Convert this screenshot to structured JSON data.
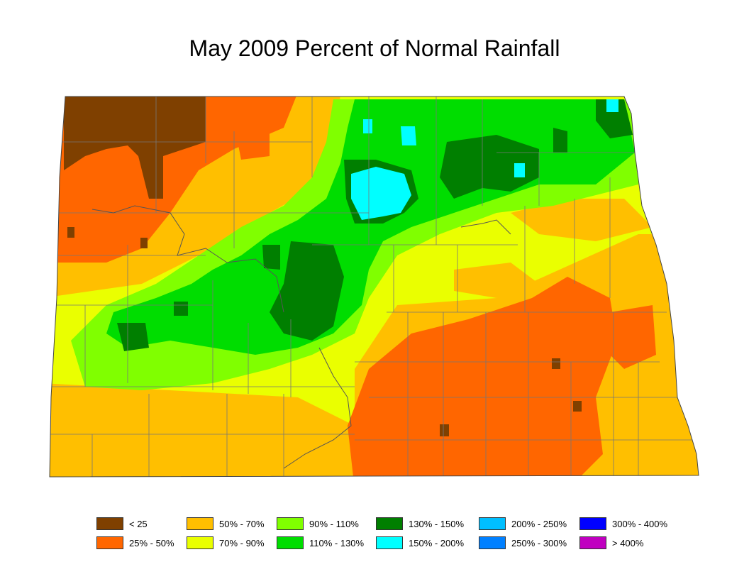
{
  "title": "May 2009 Percent of Normal Rainfall",
  "colors": {
    "lt25": "#7f4000",
    "p25_50": "#ff6600",
    "p50_70": "#ffbf00",
    "p70_90": "#eaff00",
    "p90_110": "#80ff00",
    "p110_130": "#00dd00",
    "p130_150": "#007f00",
    "p150_200": "#00ffff",
    "p200_250": "#00bfff",
    "p250_300": "#0080ff",
    "p300_400": "#0000ff",
    "gt400": "#c000c0"
  },
  "legend": [
    {
      "label": "< 25",
      "color": "#7f4000"
    },
    {
      "label": "25% - 50%",
      "color": "#ff6600"
    },
    {
      "label": "50% - 70%",
      "color": "#ffbf00"
    },
    {
      "label": "70% - 90%",
      "color": "#eaff00"
    },
    {
      "label": "90% - 110%",
      "color": "#80ff00"
    },
    {
      "label": "110% - 130%",
      "color": "#00dd00"
    },
    {
      "label": "130% - 150%",
      "color": "#007f00"
    },
    {
      "label": "150% - 200%",
      "color": "#00ffff"
    },
    {
      "label": "200% - 250%",
      "color": "#00bfff"
    },
    {
      "label": "250% - 300%",
      "color": "#0080ff"
    },
    {
      "label": "300% - 400%",
      "color": "#0000ff"
    },
    {
      "label": "> 400%",
      "color": "#c000c0"
    }
  ]
}
